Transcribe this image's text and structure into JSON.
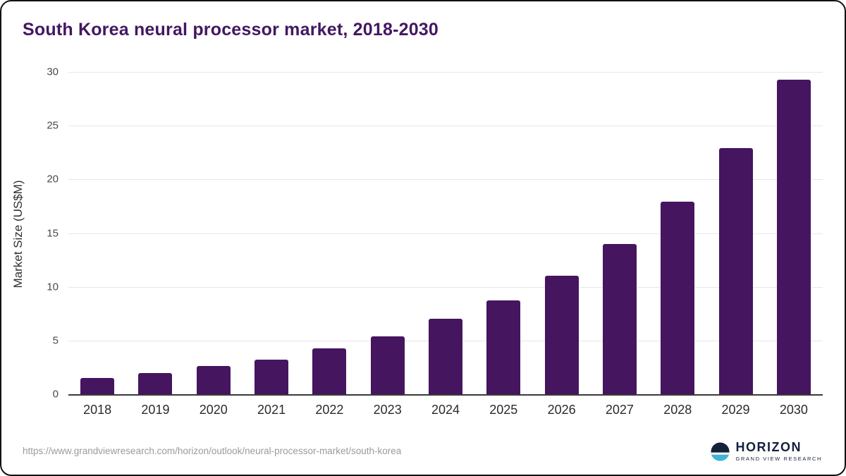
{
  "title": "South Korea neural processor market, 2018-2030",
  "chart_data": {
    "type": "bar",
    "title": "South Korea neural processor market, 2018-2030",
    "categories": [
      "2018",
      "2019",
      "2020",
      "2021",
      "2022",
      "2023",
      "2024",
      "2025",
      "2026",
      "2027",
      "2028",
      "2029",
      "2030"
    ],
    "values": [
      1.5,
      2.0,
      2.6,
      3.2,
      4.3,
      5.4,
      7.0,
      8.7,
      11.0,
      14.0,
      17.9,
      22.9,
      29.3
    ],
    "xlabel": "",
    "ylabel": "Market Size (US$M)",
    "ylim": [
      0,
      30
    ],
    "yticks": [
      0,
      5,
      10,
      15,
      20,
      25,
      30
    ],
    "grid": true,
    "legend": "none",
    "bar_color": "#45155f"
  },
  "colors": {
    "title": "#431761",
    "bar": "#45155f",
    "gridline": "#e7e7e7",
    "axis": "#3a3a3a",
    "logo_navy": "#14213d",
    "logo_teal": "#3db4d8"
  },
  "footer": {
    "source_url": "https://www.grandviewresearch.com/horizon/outlook/neural-processor-market/south-korea",
    "logo_name": "HORIZON",
    "logo_subtext": "GRAND VIEW RESEARCH"
  }
}
